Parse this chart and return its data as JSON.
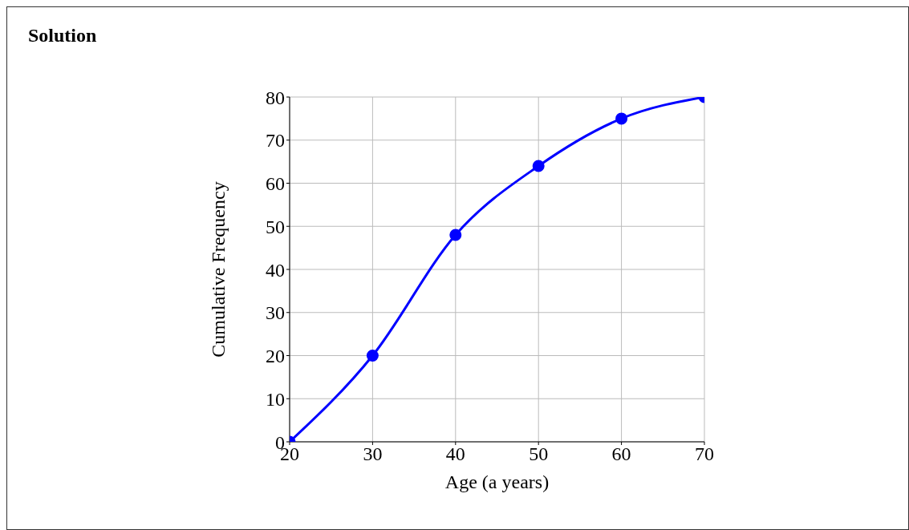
{
  "chart_data": {
    "type": "line",
    "title": "Solution",
    "xlabel": "Age (a years)",
    "ylabel": "Cumulative Frequency",
    "x": [
      20,
      30,
      40,
      50,
      60,
      70
    ],
    "series": [
      {
        "color": "#0000ff",
        "values": [
          0,
          20,
          48,
          64,
          75,
          80
        ]
      }
    ],
    "xlim": [
      20,
      70
    ],
    "xticks": [
      20,
      30,
      40,
      50,
      60,
      70
    ],
    "ylim": [
      0,
      80
    ],
    "yticks": [
      0,
      10,
      20,
      30,
      40,
      50,
      60,
      70,
      80
    ],
    "grid": true,
    "marker": "circle",
    "line_style": "solid",
    "legend": false
  }
}
